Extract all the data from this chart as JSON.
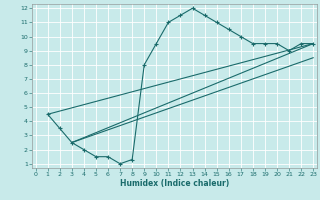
{
  "xlabel": "Humidex (Indice chaleur)",
  "background_color": "#c8eaea",
  "grid_color": "#ffffff",
  "line_color": "#1a6b6b",
  "xlim": [
    0,
    23
  ],
  "ylim": [
    1,
    12
  ],
  "xticks": [
    0,
    1,
    2,
    3,
    4,
    5,
    6,
    7,
    8,
    9,
    10,
    11,
    12,
    13,
    14,
    15,
    16,
    17,
    18,
    19,
    20,
    21,
    22,
    23
  ],
  "yticks": [
    1,
    2,
    3,
    4,
    5,
    6,
    7,
    8,
    9,
    10,
    11,
    12
  ],
  "curve1_x": [
    1,
    2,
    3,
    4,
    5,
    6,
    7,
    8,
    9,
    10,
    11,
    12,
    13,
    14,
    15,
    16,
    17,
    18,
    19,
    20,
    21,
    22,
    23
  ],
  "curve1_y": [
    4.5,
    3.5,
    2.5,
    2.0,
    1.5,
    1.5,
    1.0,
    1.3,
    8.0,
    9.5,
    11.0,
    11.5,
    12.0,
    11.5,
    11.0,
    10.5,
    10.0,
    9.5,
    9.5,
    9.5,
    9.0,
    9.5,
    9.5
  ],
  "line2_x": [
    1,
    23
  ],
  "line2_y": [
    4.5,
    9.5
  ],
  "line3_x": [
    3,
    23
  ],
  "line3_y": [
    2.5,
    9.5
  ],
  "line4_x": [
    3,
    23
  ],
  "line4_y": [
    2.5,
    8.5
  ],
  "figsize": [
    3.2,
    2.0
  ],
  "dpi": 100
}
